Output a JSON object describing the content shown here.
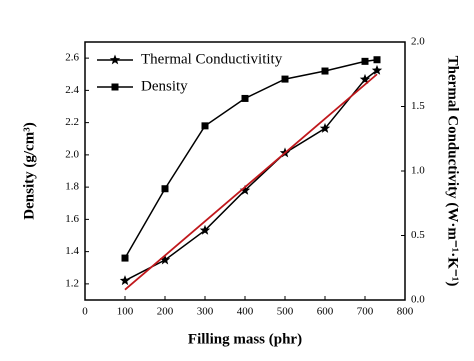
{
  "chart_data": {
    "type": "line",
    "xlabel": "Filling mass (phr)",
    "ylabel": "Density (g/cm³)",
    "y2label": "Thermal Conductivity (W·m⁻¹·K⁻¹)",
    "xlim": [
      0,
      800
    ],
    "xticks": [
      0,
      100,
      200,
      300,
      400,
      500,
      600,
      700,
      800
    ],
    "ylim": [
      1.1,
      2.7
    ],
    "yticks": [
      1.2,
      1.4,
      1.6,
      1.8,
      {
        "value": 2,
        "label": "2.0"
      },
      2.2,
      2.4,
      2.6
    ],
    "y2lim": [
      0,
      2
    ],
    "y2ticks": [
      {
        "value": 0,
        "label": "0.0"
      },
      0.5,
      {
        "value": 1,
        "label": "1.0"
      },
      1.5,
      {
        "value": 2,
        "label": "2.0"
      }
    ],
    "legend": "top-left",
    "series": [
      {
        "name": "Thermal Conductivitity",
        "color": "#000000",
        "marker": "star",
        "axis": "y2",
        "x": [
          100,
          200,
          300,
          400,
          500,
          600,
          700,
          730
        ],
        "values": [
          0.15,
          0.31,
          0.54,
          0.85,
          1.14,
          1.33,
          1.71,
          1.78
        ]
      },
      {
        "name": "Density",
        "color": "#000000",
        "marker": "square",
        "x": [
          100,
          200,
          300,
          400,
          500,
          600,
          700,
          730
        ],
        "values": [
          1.36,
          1.79,
          2.18,
          2.35,
          2.47,
          2.52,
          2.58,
          2.59
        ]
      }
    ],
    "fit_line": {
      "color": "#c0181c",
      "axis": "y2",
      "x": [
        100,
        730
      ],
      "values": [
        0.08,
        1.75
      ]
    }
  }
}
